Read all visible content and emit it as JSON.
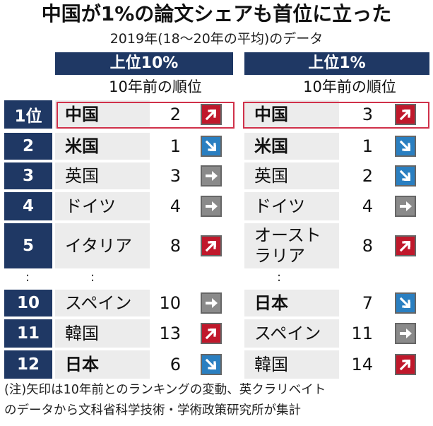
{
  "title": "中国が1%の論文シェアも首位に立った",
  "subtitle": "2019年(18〜20年の平均)のデータ",
  "panels": {
    "top10": {
      "header": "上位10%",
      "subheader": "10年前の順位"
    },
    "top1": {
      "header": "上位1%",
      "subheader": "10年前の順位"
    }
  },
  "ranks": [
    "1位",
    "2",
    "3",
    "4",
    "5",
    "10",
    "11",
    "12"
  ],
  "dots": ":",
  "top10_rows": [
    {
      "name": "中国",
      "prev": "2",
      "trend": "up"
    },
    {
      "name": "米国",
      "prev": "1",
      "trend": "down"
    },
    {
      "name": "英国",
      "prev": "3",
      "trend": "flat"
    },
    {
      "name": "ドイツ",
      "prev": "4",
      "trend": "flat"
    },
    {
      "name": "イタリア",
      "prev": "8",
      "trend": "up"
    },
    {
      "name": "スペイン",
      "prev": "10",
      "trend": "flat"
    },
    {
      "name": "韓国",
      "prev": "13",
      "trend": "up"
    },
    {
      "name": "日本",
      "prev": "6",
      "trend": "down"
    }
  ],
  "top1_rows": [
    {
      "name": "中国",
      "prev": "3",
      "trend": "up"
    },
    {
      "name": "米国",
      "prev": "1",
      "trend": "down"
    },
    {
      "name": "英国",
      "prev": "2",
      "trend": "down"
    },
    {
      "name": "ドイツ",
      "prev": "4",
      "trend": "flat"
    },
    {
      "name_line1": "オースト",
      "name_line2": "ラリア",
      "prev": "8",
      "trend": "up"
    },
    {
      "name": "日本",
      "prev": "7",
      "trend": "down"
    },
    {
      "name": "スペイン",
      "prev": "11",
      "trend": "flat"
    },
    {
      "name": "韓国",
      "prev": "14",
      "trend": "up"
    }
  ],
  "note_line1": "(注)矢印は10年前とのランキングの変動、英クラリベイト",
  "note_line2": "のデータから文科省科学技術・学術政策研究所が集計",
  "colors": {
    "navy": "#1f3864",
    "up": "#c0182b",
    "down": "#2a7fc1",
    "flat": "#8a8a8a",
    "highlight": "#d0314a"
  }
}
